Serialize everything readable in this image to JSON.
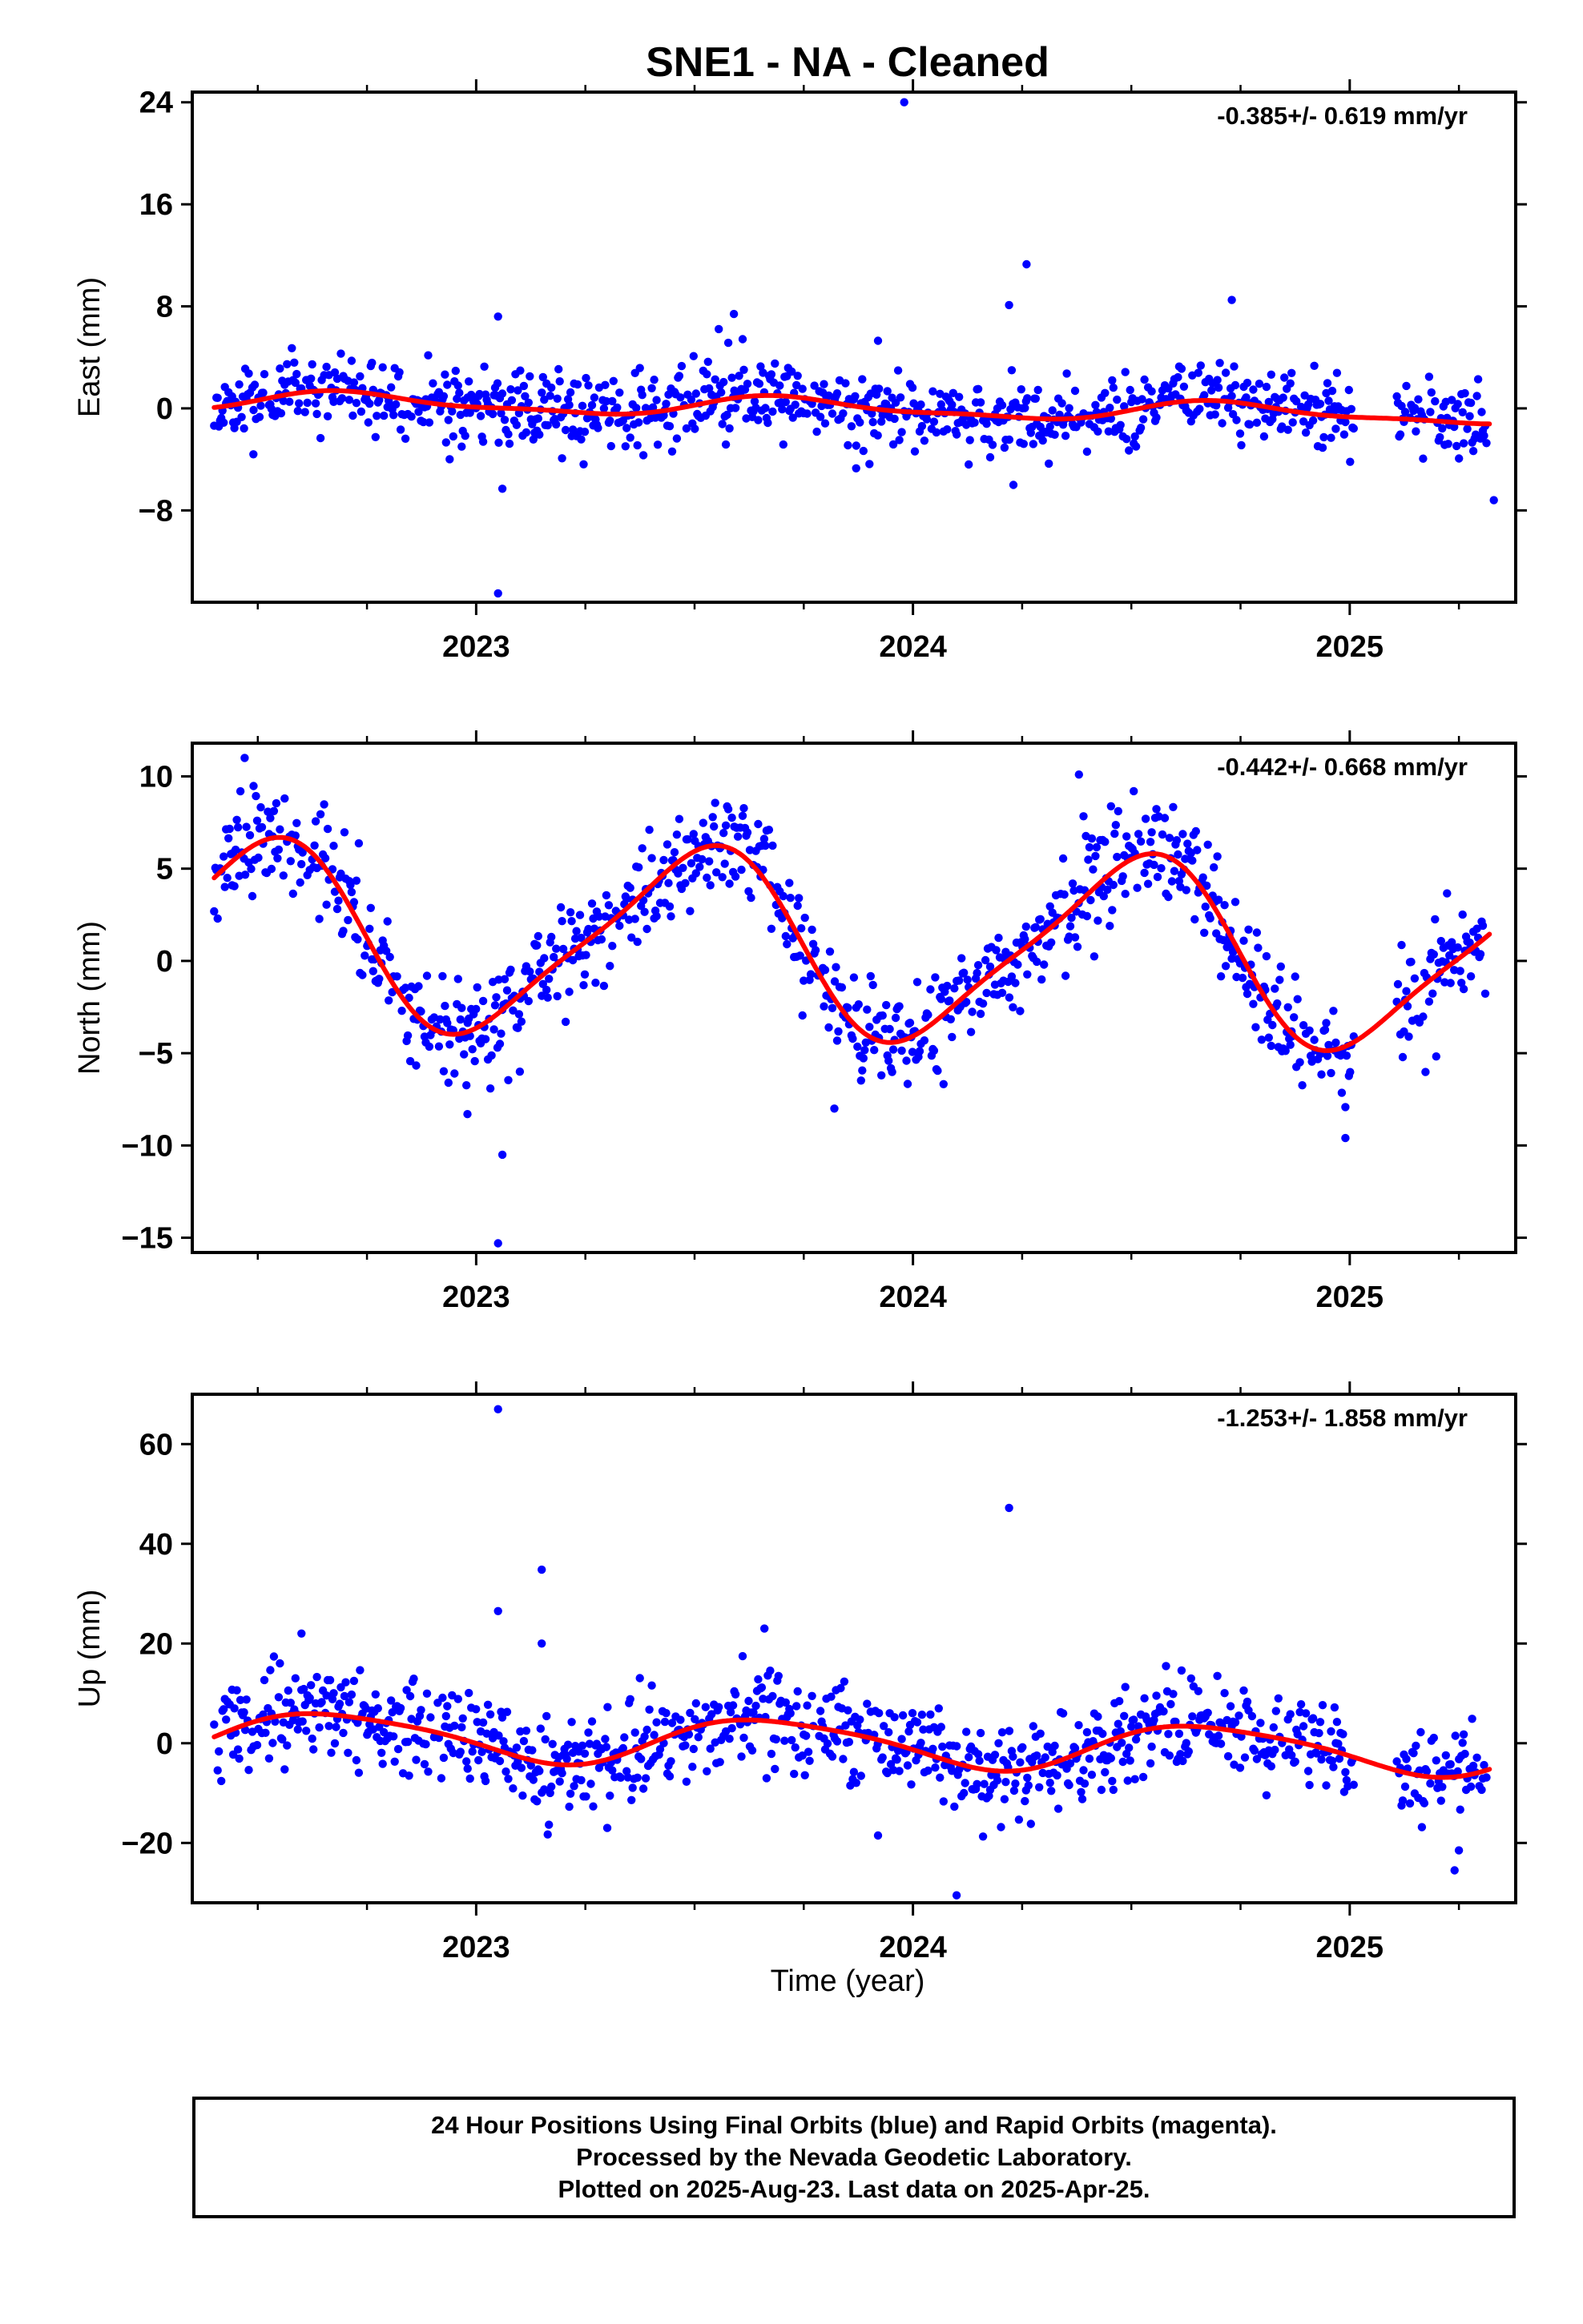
{
  "title": "SNE1  - NA - Cleaned",
  "xlabel": "Time (year)",
  "colors": {
    "points": "#0000ff",
    "fit": "#ff0000",
    "axis": "#000000"
  },
  "footer": {
    "line1": "24 Hour Positions Using Final Orbits (blue) and Rapid Orbits (magenta).",
    "line2": "Processed by the Nevada Geodetic Laboratory.",
    "line3": "Plotted on 2025-Aug-23. Last data on 2025-Apr-25."
  },
  "chart_data": [
    {
      "type": "scatter",
      "ylabel": "East (mm)",
      "rate": "-0.385+/- 0.619 mm/yr",
      "xlim": [
        2022.35,
        2025.38
      ],
      "ylim": [
        -15.2,
        24.8
      ],
      "xticks": [
        2023,
        2024,
        2025
      ],
      "yticks": [
        24,
        16,
        8,
        0,
        -8
      ],
      "ytick_labels": [
        "24",
        "16",
        "8",
        "0",
        "−8"
      ],
      "fit": {
        "mean": 0.0,
        "trend": -0.385,
        "t0": 2023.9,
        "amp1": 0.7,
        "phase1": 2022.71,
        "amp2": 0.25,
        "phase2": 2022.65
      },
      "outliers": [
        [
          2023.05,
          -14.5
        ],
        [
          2023.06,
          -6.3
        ],
        [
          2023.05,
          7.2
        ],
        [
          2023.98,
          24.0
        ],
        [
          2024.22,
          8.1
        ],
        [
          2024.26,
          11.3
        ],
        [
          2024.23,
          -6.0
        ],
        [
          2023.59,
          7.4
        ],
        [
          2023.92,
          5.3
        ],
        [
          2024.73,
          8.5
        ],
        [
          2025.33,
          -7.2
        ],
        [
          2023.87,
          -4.7
        ],
        [
          2022.49,
          -3.6
        ]
      ],
      "noise_sd": 1.5,
      "seed": 11
    },
    {
      "type": "scatter",
      "ylabel": "North (mm)",
      "rate": "-0.442+/- 0.668 mm/yr",
      "xlim": [
        2022.35,
        2025.38
      ],
      "ylim": [
        -15.8,
        11.8
      ],
      "xticks": [
        2023,
        2024,
        2025
      ],
      "yticks": [
        10,
        5,
        0,
        -5,
        -10,
        -15
      ],
      "ytick_labels": [
        "10",
        "5",
        "0",
        "−5",
        "−10",
        "−15"
      ],
      "fit": {
        "mean": 0.8,
        "trend": -0.442,
        "t0": 2023.9,
        "amp1": 4.9,
        "phase1": 2022.5,
        "amp2": 1.0,
        "phase2": 2022.62
      },
      "outliers": [
        [
          2022.47,
          11.0
        ],
        [
          2023.06,
          -10.5
        ],
        [
          2023.05,
          -15.3
        ],
        [
          2024.38,
          10.1
        ],
        [
          2024.99,
          -9.6
        ],
        [
          2023.1,
          -6.0
        ],
        [
          2022.98,
          -8.3
        ],
        [
          2023.82,
          -8.0
        ]
      ],
      "noise_sd": 1.4,
      "seed": 23
    },
    {
      "type": "scatter",
      "ylabel": "Up (mm)",
      "rate": "-1.253+/- 1.858 mm/yr",
      "xlim": [
        2022.35,
        2025.38
      ],
      "ylim": [
        -32,
        70
      ],
      "xticks": [
        2023,
        2024,
        2025
      ],
      "yticks": [
        60,
        40,
        20,
        0,
        -20
      ],
      "ytick_labels": [
        "60",
        "40",
        "20",
        "0",
        "−20"
      ],
      "fit": {
        "mean": 0.0,
        "trend": -1.253,
        "t0": 2023.9,
        "amp1": 4.6,
        "phase1": 2022.68,
        "amp2": 0.8,
        "phase2": 2022.5
      },
      "outliers": [
        [
          2023.05,
          67.0
        ],
        [
          2023.15,
          34.8
        ],
        [
          2023.05,
          26.5
        ],
        [
          2024.22,
          47.2
        ],
        [
          2023.66,
          23.0
        ],
        [
          2024.1,
          -30.5
        ],
        [
          2023.92,
          -18.5
        ],
        [
          2025.24,
          -25.5
        ],
        [
          2025.25,
          -21.5
        ],
        [
          2023.3,
          -17.0
        ],
        [
          2022.6,
          22.0
        ],
        [
          2023.15,
          20.0
        ]
      ],
      "noise_sd": 4.6,
      "seed": 37
    }
  ]
}
